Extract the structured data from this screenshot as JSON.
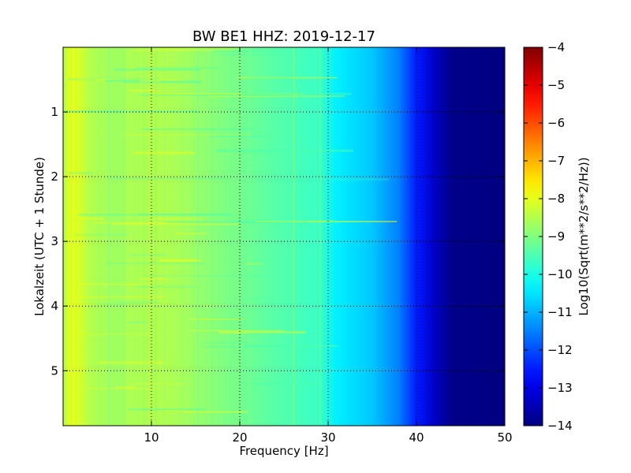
{
  "chart_data": {
    "type": "heatmap",
    "title": "BW BE1 HHZ: 2019-12-17",
    "xlabel": "Frequency [Hz]",
    "ylabel": "Lokalzeit (UTC + 1 Stunde)",
    "colorbar_label": "Log10(Sqrt(m**2/s**2/Hz))",
    "xlim": [
      0,
      50
    ],
    "ylim": [
      5.85,
      0
    ],
    "x_ticks": [
      10,
      20,
      30,
      40,
      50
    ],
    "y_ticks": [
      1,
      2,
      3,
      4,
      5
    ],
    "colorbar_range": [
      -14,
      -4
    ],
    "colorbar_ticks": [
      -4,
      -5,
      -6,
      -7,
      -8,
      -9,
      -10,
      -11,
      -12,
      -13,
      -14
    ],
    "colormap": "jet",
    "grid": true,
    "frequency_profile": [
      {
        "hz": 0,
        "value": -8.4
      },
      {
        "hz": 1,
        "value": -7.9
      },
      {
        "hz": 3,
        "value": -8.5
      },
      {
        "hz": 6,
        "value": -8.7
      },
      {
        "hz": 10,
        "value": -8.5
      },
      {
        "hz": 13,
        "value": -8.6
      },
      {
        "hz": 18,
        "value": -9.0
      },
      {
        "hz": 24,
        "value": -9.4
      },
      {
        "hz": 29,
        "value": -9.7
      },
      {
        "hz": 31,
        "value": -10.4
      },
      {
        "hz": 35,
        "value": -10.8
      },
      {
        "hz": 38,
        "value": -11.5
      },
      {
        "hz": 40,
        "value": -12.5
      },
      {
        "hz": 42,
        "value": -13.3
      },
      {
        "hz": 44,
        "value": -13.9
      },
      {
        "hz": 50,
        "value": -14.0
      }
    ]
  }
}
